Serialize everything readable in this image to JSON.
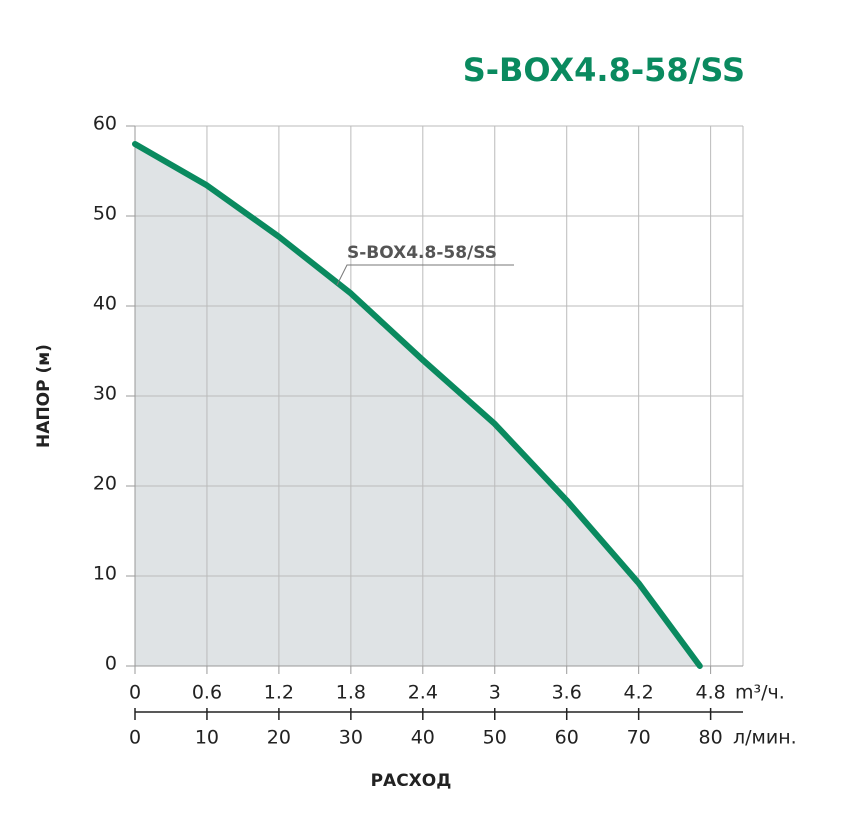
{
  "chart_data": {
    "type": "line",
    "title": "S-BOX4.8-58/SS",
    "x_label": "РАСХОД",
    "y_label": "НАПОР (м)",
    "x_unit": "m³/ч.",
    "x2_unit": "л/мин.",
    "x": [
      0,
      0.6,
      1.2,
      1.8,
      2.4,
      3,
      3.6,
      4.2,
      4.71
    ],
    "series": [
      {
        "name": "S-BOX4.8-58/SS",
        "color": "#0a8a5f",
        "values": [
          58,
          53.4,
          47.7,
          41.4,
          34,
          26.9,
          18.4,
          9.2,
          0
        ]
      }
    ],
    "area_color": "#dfe3e5",
    "xlim": [
      0,
      5.07
    ],
    "xticks": [
      0,
      0.6,
      1.2,
      1.8,
      2.4,
      3,
      3.6,
      4.2,
      4.8
    ],
    "x2lim": [
      0,
      84.5
    ],
    "x2ticks": [
      0,
      10,
      20,
      30,
      40,
      50,
      60,
      70,
      80
    ],
    "ylim": [
      0,
      60
    ],
    "yticks": [
      0,
      10,
      20,
      30,
      40,
      50,
      60
    ],
    "grid": true
  }
}
